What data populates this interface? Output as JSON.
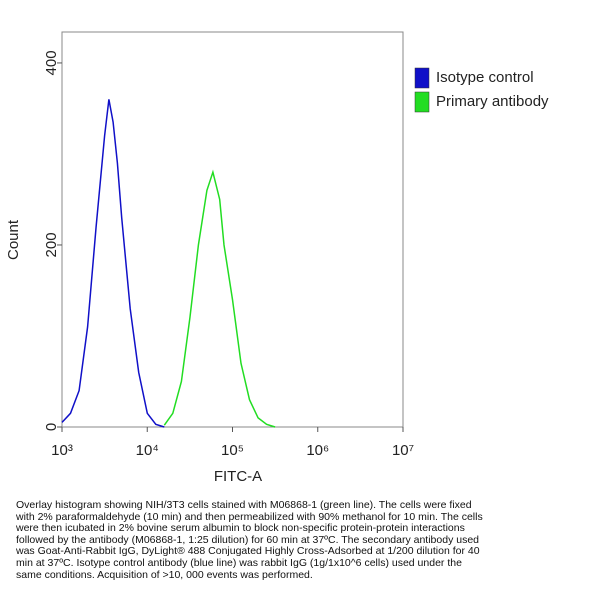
{
  "chart_data": {
    "type": "line",
    "xlabel": "FITC-A",
    "ylabel": "Count",
    "xscale": "log",
    "xlim": [
      1000,
      10000000
    ],
    "ylim": [
      0,
      434
    ],
    "xticks": [
      {
        "value": 1000,
        "label": "10³"
      },
      {
        "value": 10000,
        "label": "10⁴"
      },
      {
        "value": 100000,
        "label": "10⁵"
      },
      {
        "value": 1000000,
        "label": "10⁶"
      },
      {
        "value": 10000000,
        "label": "10⁷"
      }
    ],
    "yticks": [
      0,
      200,
      400
    ],
    "legend": "top-right",
    "series": [
      {
        "name": "Isotype control",
        "color": "#1010c8",
        "x": [
          1000,
          1259,
          1585,
          1995,
          2512,
          3162,
          3548,
          3981,
          4467,
          5012,
          6310,
          7943,
          10000,
          12589,
          15849
        ],
        "values": [
          5,
          15,
          40,
          110,
          220,
          320,
          360,
          335,
          290,
          230,
          130,
          60,
          15,
          3,
          0
        ]
      },
      {
        "name": "Primary antibody",
        "color": "#22dd22",
        "x": [
          15849,
          19953,
          25119,
          31623,
          39811,
          50119,
          58884,
          70795,
          79433,
          100000,
          125893,
          158489,
          199526,
          251189,
          316228
        ],
        "values": [
          2,
          15,
          50,
          120,
          200,
          260,
          280,
          250,
          200,
          140,
          70,
          30,
          10,
          3,
          0
        ]
      }
    ]
  },
  "caption": [
    "Overlay histogram showing NIH/3T3 cells stained with M06868-1 (green line). The cells were fixed",
    "with 2% paraformaldehyde (10 min) and then permeabilized with 90% methanol for 10 min. The cells",
    "were then icubated in 2% bovine serum albumin to block non-specific protein-protein interactions",
    "followed by the antibody (M06868-1, 1:25 dilution) for 60 min at 37ºC. The secondary antibody used",
    "was Goat-Anti-Rabbit IgG, DyLight® 488 Conjugated Highly Cross-Adsorbed at 1/200 dilution for 40",
    "min at 37ºC. Isotype control antibody (blue line) was rabbit IgG (1g/1x10^6 cells) used under the",
    "same conditions. Acquisition of >10, 000 events was performed."
  ]
}
